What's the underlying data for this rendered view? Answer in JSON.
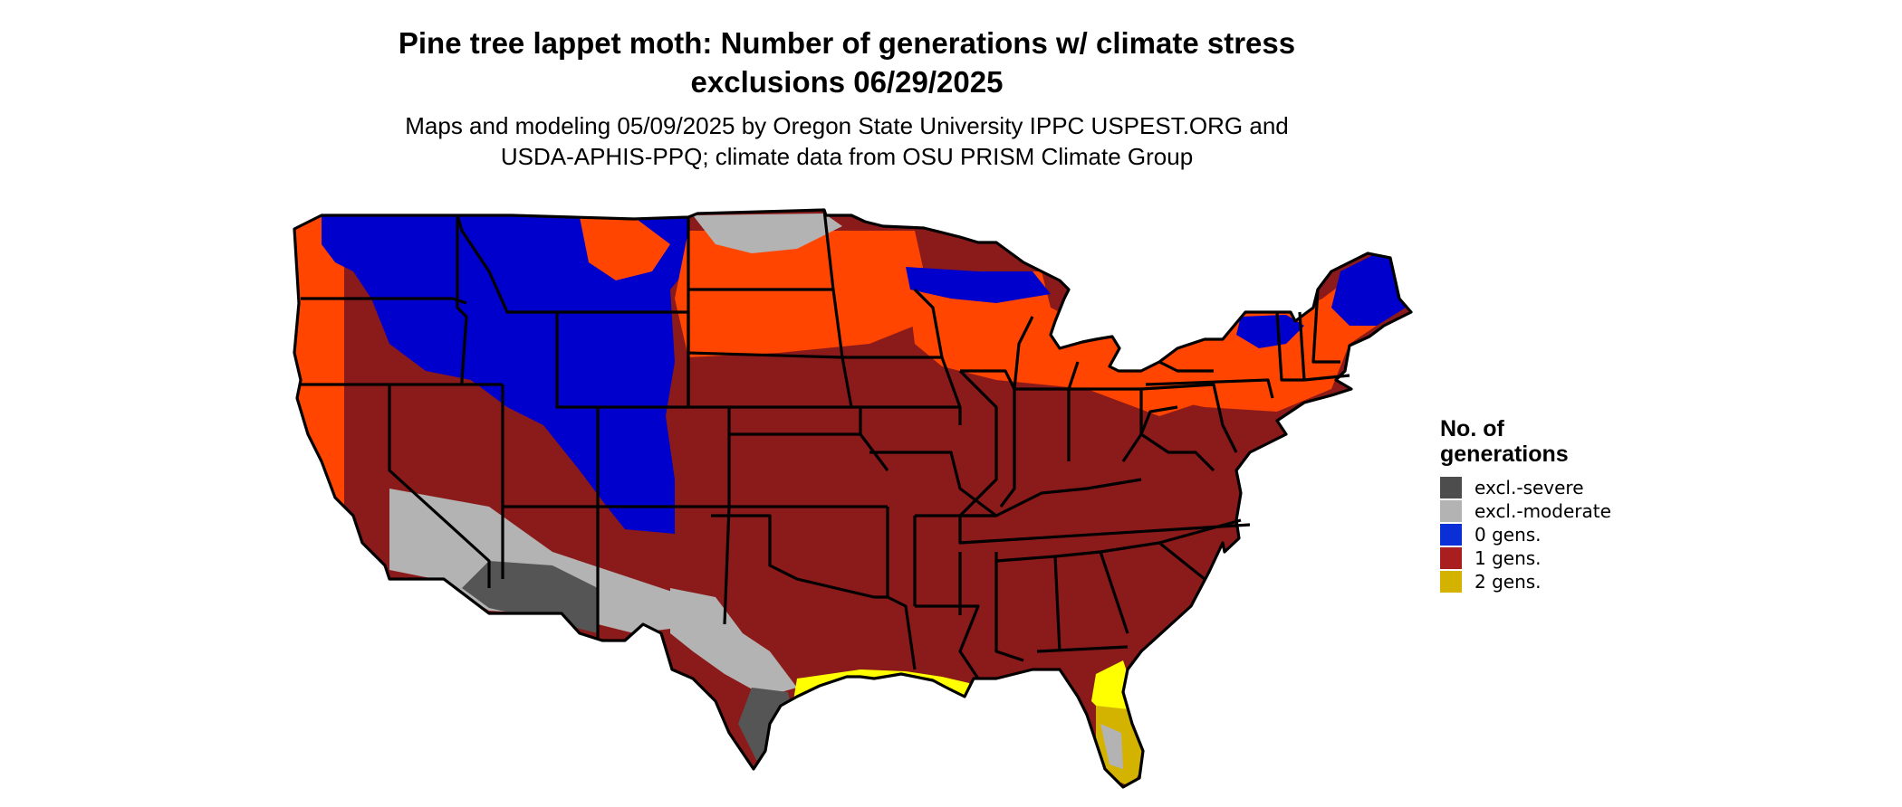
{
  "title_lines": [
    "Pine tree lappet moth: Number of generations w/ climate stress",
    "exclusions 06/29/2025"
  ],
  "subtitle_lines": [
    "Maps and modeling 05/09/2025 by Oregon State University IPPC USPEST.ORG and",
    "USDA-APHIS-PPQ; climate data from OSU PRISM Climate Group"
  ],
  "legend": {
    "title_lines": [
      "No. of",
      "generations"
    ],
    "items": [
      {
        "label": "excl.-severe",
        "color": "#4d4d4d"
      },
      {
        "label": "excl.-moderate",
        "color": "#b3b3b3"
      },
      {
        "label": "0 gens.",
        "color": "#0a2fd6"
      },
      {
        "label": "1 gens.",
        "color": "#a91e1e"
      },
      {
        "label": "2 gens.",
        "color": "#d4b300"
      }
    ]
  },
  "map_colors": {
    "one_gen": "#8b1a1a",
    "zero_gen": "#0000cc",
    "transition": "#ff4500",
    "excl_severe": "#555555",
    "excl_moderate": "#b3b3b3",
    "two_gen_bright": "#ffff00",
    "two_gen": "#d4b300",
    "border": "#000000"
  }
}
